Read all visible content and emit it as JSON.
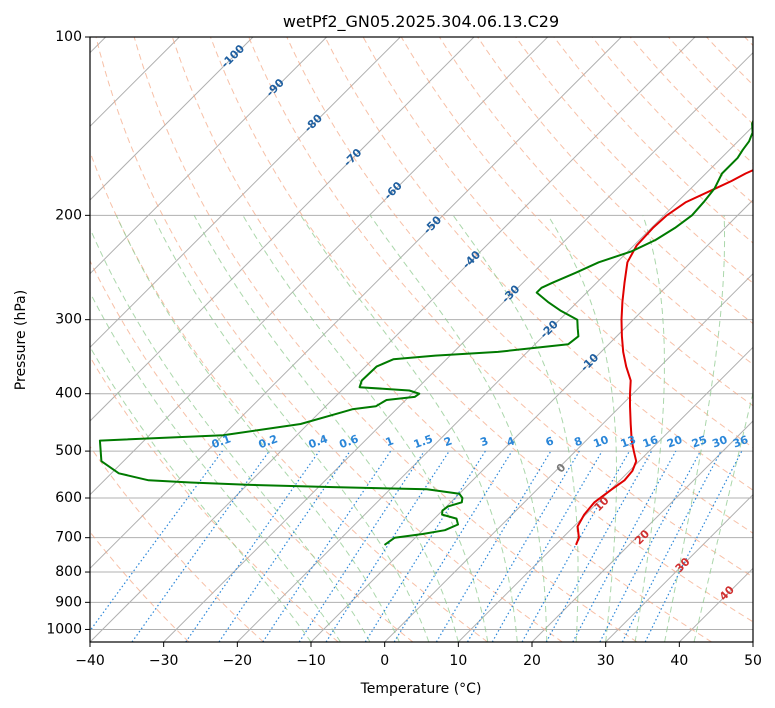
{
  "chart_data": {
    "type": "line",
    "title": "wetPf2_GN05.2025.304.06.13.C29",
    "xlabel": "Temperature (°C)",
    "ylabel": "Pressure (hPa)",
    "xlim": [
      -40,
      50
    ],
    "ylim": [
      1050,
      100
    ],
    "y_scale": "log",
    "x_ticks": [
      -40,
      -30,
      -20,
      -10,
      0,
      10,
      20,
      30,
      40,
      50
    ],
    "y_ticks": [
      100,
      200,
      300,
      400,
      500,
      600,
      700,
      800,
      900,
      1000
    ],
    "grid": true,
    "colors": {
      "temperature": "#e00000",
      "dewpoint": "#007a00",
      "isotherm_grid": "#b0b0b0",
      "dry_adiabat": "#f4a582",
      "moist_adiabat": "#8fc98f",
      "mixing_ratio": "#2a86d8",
      "isotherm_label": "#1f5fa0",
      "sat_label_warm": "#d03030",
      "sat_label_zero": "#777777"
    },
    "series": [
      {
        "key": "temperature",
        "pressure": [
          720,
          700,
          670,
          640,
          610,
          580,
          560,
          540,
          520,
          500,
          480,
          450,
          420,
          400,
          380,
          360,
          340,
          320,
          300,
          280,
          260,
          240,
          225,
          210,
          200,
          190,
          180,
          175,
          170,
          160,
          150,
          140,
          130,
          125,
          120,
          115,
          110,
          105,
          100
        ],
        "temp": [
          12.8,
          12.2,
          10.5,
          9.8,
          9.5,
          10.1,
          10.6,
          10.4,
          9.6,
          7.9,
          6.2,
          3.8,
          1.3,
          -0.4,
          -2.1,
          -4.6,
          -7.0,
          -9.3,
          -11.6,
          -13.9,
          -16.2,
          -18.6,
          -19.6,
          -19.8,
          -19.6,
          -18.8,
          -16.6,
          -15.5,
          -14.6,
          -12.0,
          -10.2,
          -8.2,
          -8.0,
          -7.9,
          -7.0,
          -5.6,
          -4.0,
          -2.7,
          -1.9
        ]
      },
      {
        "key": "dewpoint",
        "pressure": [
          720,
          710,
          700,
          690,
          680,
          665,
          650,
          640,
          630,
          620,
          610,
          600,
          590,
          580,
          575,
          570,
          565,
          560,
          545,
          520,
          480,
          470,
          450,
          430,
          425,
          420,
          410,
          405,
          400,
          395,
          390,
          380,
          360,
          350,
          345,
          340,
          330,
          320,
          310,
          300,
          290,
          280,
          270,
          265,
          260,
          250,
          240,
          230,
          220,
          210,
          200,
          190,
          180,
          170,
          160,
          155,
          150,
          145,
          140,
          130,
          120,
          110,
          100
        ],
        "temp": [
          -13.2,
          -13.0,
          -12.8,
          -9.5,
          -7.0,
          -6.0,
          -7.0,
          -9.5,
          -10.0,
          -9.8,
          -8.5,
          -9.0,
          -10.0,
          -15.0,
          -28.0,
          -40.0,
          -48.0,
          -54.0,
          -59.0,
          -63.0,
          -66.0,
          -50.0,
          -41.0,
          -37.0,
          -36.0,
          -33.2,
          -32.6,
          -29.2,
          -29.0,
          -30.8,
          -38.0,
          -38.6,
          -38.5,
          -37.2,
          -32.0,
          -24.0,
          -15.5,
          -15.2,
          -16.4,
          -17.6,
          -21.0,
          -24.0,
          -26.8,
          -26.8,
          -26.0,
          -24.2,
          -22.5,
          -19.5,
          -17.8,
          -16.8,
          -16.2,
          -16.4,
          -16.8,
          -17.8,
          -17.8,
          -18.2,
          -18.5,
          -19.2,
          -20.5,
          -22.0,
          -24.5,
          -27.0,
          -30.5
        ]
      }
    ],
    "isotherm_labels": [
      "-100",
      "-90",
      "-80",
      "-70",
      "-60",
      "-50",
      "-40",
      "-30",
      "-20",
      "-10"
    ],
    "mixing_ratio_labels": [
      "0.1",
      "0.2",
      "0.4",
      "0.6",
      "1",
      "1.5",
      "2",
      "3",
      "4",
      "6",
      "8",
      "10",
      "13",
      "16",
      "20",
      "25",
      "30",
      "36"
    ],
    "saturation_labels": [
      "0",
      "10",
      "20",
      "30",
      "40"
    ],
    "mixing_ratio_values": [
      0.1,
      0.2,
      0.4,
      0.6,
      1,
      1.5,
      2,
      3,
      4,
      6,
      8,
      10,
      13,
      16,
      20,
      25,
      30,
      36
    ],
    "saturation_values": [
      0,
      10,
      20,
      30,
      40
    ]
  }
}
